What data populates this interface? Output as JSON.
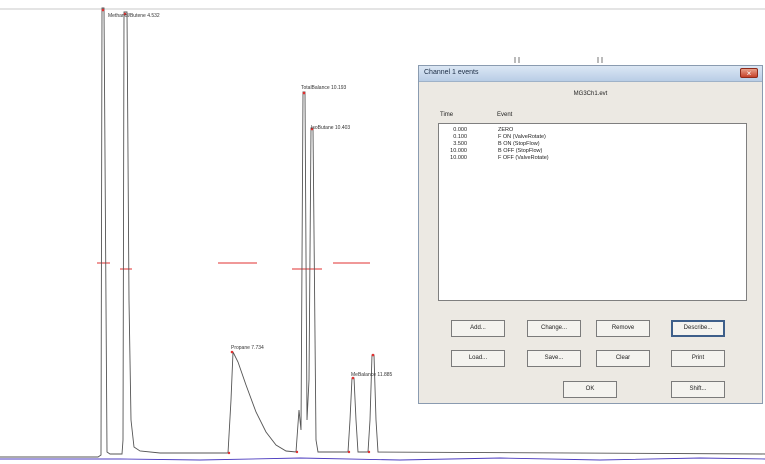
{
  "chromatogram": {
    "peak_labels": [
      "Methanol/Butene 4.532",
      "TotalBalance 10.193",
      "IsoButane 10.403",
      "Propane 7.734",
      "MeBalance 11.885"
    ]
  },
  "dialog": {
    "title": "Channel 1 events",
    "close_label": "×",
    "filename": "MG3Ch1.evt",
    "columns": {
      "time": "Time",
      "event": "Event"
    },
    "events": [
      {
        "time": "0.000",
        "event": "ZERO"
      },
      {
        "time": "0.100",
        "event": "F ON (ValveRotate)"
      },
      {
        "time": "3.500",
        "event": "B ON (StopFlow)"
      },
      {
        "time": "10.000",
        "event": "B OFF (StopFlow)"
      },
      {
        "time": "10.000",
        "event": "F OFF (ValveRotate)"
      }
    ],
    "buttons": {
      "add": "Add...",
      "change": "Change...",
      "remove": "Remove",
      "describe": "Describe...",
      "load": "Load...",
      "save": "Save...",
      "clear": "Clear",
      "print": "Print",
      "ok": "OK",
      "shift": "Shift..."
    }
  },
  "colors": {
    "trace": "#555555",
    "baseline": "#4b3bbf",
    "marker": "#e03030"
  }
}
